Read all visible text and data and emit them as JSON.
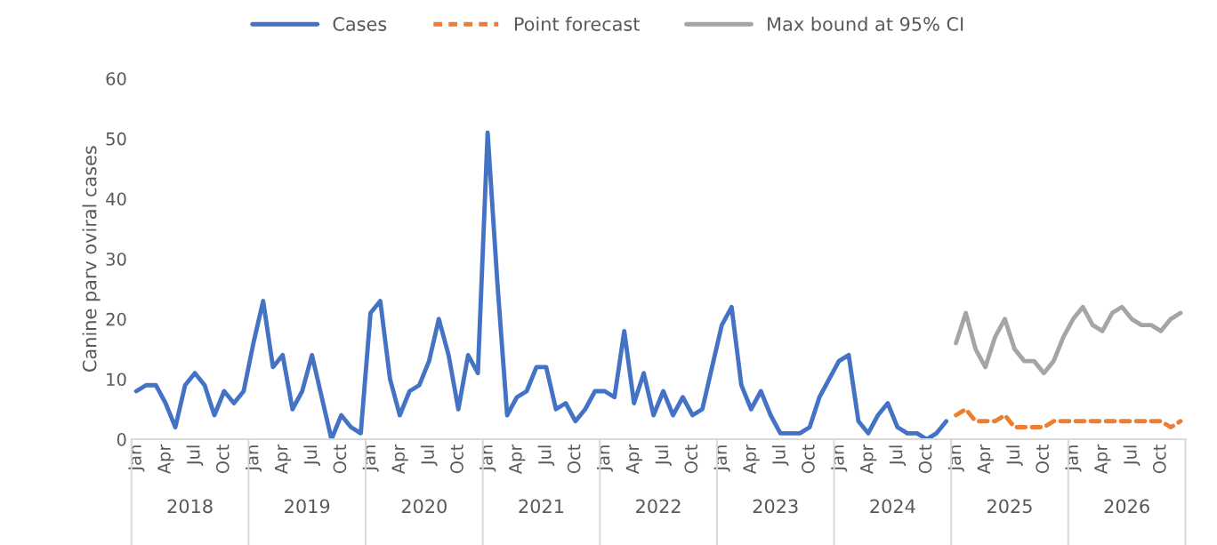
{
  "chart_data": {
    "type": "line",
    "ylabel": "Canine parv oviral cases",
    "categories": [
      "Jan",
      null,
      null,
      "Apr",
      null,
      null,
      "Jul",
      null,
      null,
      "Oct",
      null,
      null,
      "Jan",
      null,
      null,
      "Apr",
      null,
      null,
      "Jul",
      null,
      null,
      "Oct",
      null,
      null,
      "Jan",
      null,
      null,
      "Apr",
      null,
      null,
      "Jul",
      null,
      null,
      "Oct",
      null,
      null,
      "Jan",
      null,
      null,
      "Apr",
      null,
      null,
      "Jul",
      null,
      null,
      "Oct",
      null,
      null,
      "Jan",
      null,
      null,
      "Apr",
      null,
      null,
      "Jul",
      null,
      null,
      "Oct",
      null,
      null,
      "Jan",
      null,
      null,
      "Apr",
      null,
      null,
      "Jul",
      null,
      null,
      "Oct",
      null,
      null,
      "Jan",
      null,
      null,
      "Apr",
      null,
      null,
      "Jul",
      null,
      null,
      "Oct",
      null,
      null,
      "Jan",
      null,
      null,
      "Apr",
      null,
      null,
      "Jul",
      null,
      null,
      "Oct",
      null,
      null,
      "Jan",
      null,
      null,
      "Apr",
      null,
      null,
      "Jul",
      null,
      null,
      "Oct",
      null,
      null
    ],
    "annotations": [
      "2018",
      "2019",
      "2020",
      "2021",
      "2022",
      "2023",
      "2024",
      "2025",
      "2026"
    ],
    "series": [
      {
        "name": "Cases",
        "color": "#4472c4",
        "line_style": "solid",
        "values": [
          8,
          9,
          9,
          6,
          2,
          9,
          11,
          9,
          4,
          8,
          6,
          8,
          16,
          23,
          12,
          14,
          5,
          8,
          14,
          7,
          0,
          4,
          2,
          1,
          21,
          23,
          10,
          4,
          8,
          9,
          13,
          20,
          14,
          5,
          14,
          11,
          51,
          26,
          4,
          7,
          8,
          12,
          12,
          5,
          6,
          3,
          5,
          8,
          8,
          7,
          18,
          6,
          11,
          4,
          8,
          4,
          7,
          4,
          5,
          12,
          19,
          22,
          9,
          5,
          8,
          4,
          1,
          1,
          1,
          2,
          7,
          10,
          13,
          14,
          3,
          1,
          4,
          6,
          2,
          1,
          1,
          0,
          1,
          3,
          null,
          null,
          null,
          null,
          null,
          null,
          null,
          null,
          null,
          null,
          null,
          null,
          null,
          null,
          null,
          null,
          null,
          null,
          null,
          null,
          null,
          null,
          null,
          null
        ]
      },
      {
        "name": "Point forecast",
        "color": "#ed7d31",
        "line_style": "dashed",
        "values": [
          null,
          null,
          null,
          null,
          null,
          null,
          null,
          null,
          null,
          null,
          null,
          null,
          null,
          null,
          null,
          null,
          null,
          null,
          null,
          null,
          null,
          null,
          null,
          null,
          null,
          null,
          null,
          null,
          null,
          null,
          null,
          null,
          null,
          null,
          null,
          null,
          null,
          null,
          null,
          null,
          null,
          null,
          null,
          null,
          null,
          null,
          null,
          null,
          null,
          null,
          null,
          null,
          null,
          null,
          null,
          null,
          null,
          null,
          null,
          null,
          null,
          null,
          null,
          null,
          null,
          null,
          null,
          null,
          null,
          null,
          null,
          null,
          null,
          null,
          null,
          null,
          null,
          null,
          null,
          null,
          null,
          null,
          null,
          null,
          4,
          5,
          3,
          3,
          3,
          4,
          2,
          2,
          2,
          2,
          3,
          3,
          3,
          3,
          3,
          3,
          3,
          3,
          3,
          3,
          3,
          3,
          2,
          3
        ]
      },
      {
        "name": "Max bound at 95% CI",
        "color": "#a5a5a5",
        "line_style": "solid",
        "values": [
          null,
          null,
          null,
          null,
          null,
          null,
          null,
          null,
          null,
          null,
          null,
          null,
          null,
          null,
          null,
          null,
          null,
          null,
          null,
          null,
          null,
          null,
          null,
          null,
          null,
          null,
          null,
          null,
          null,
          null,
          null,
          null,
          null,
          null,
          null,
          null,
          null,
          null,
          null,
          null,
          null,
          null,
          null,
          null,
          null,
          null,
          null,
          null,
          null,
          null,
          null,
          null,
          null,
          null,
          null,
          null,
          null,
          null,
          null,
          null,
          null,
          null,
          null,
          null,
          null,
          null,
          null,
          null,
          null,
          null,
          null,
          null,
          null,
          null,
          null,
          null,
          null,
          null,
          null,
          null,
          null,
          null,
          null,
          null,
          16,
          21,
          15,
          12,
          17,
          20,
          15,
          13,
          13,
          11,
          13,
          17,
          20,
          22,
          19,
          18,
          21,
          22,
          20,
          19,
          19,
          18,
          20,
          21
        ]
      }
    ],
    "ylim": [
      0,
      60
    ],
    "yticks": [
      0,
      10,
      20,
      30,
      40,
      50,
      60
    ],
    "grid": false,
    "legend": "top",
    "marker": "none"
  }
}
